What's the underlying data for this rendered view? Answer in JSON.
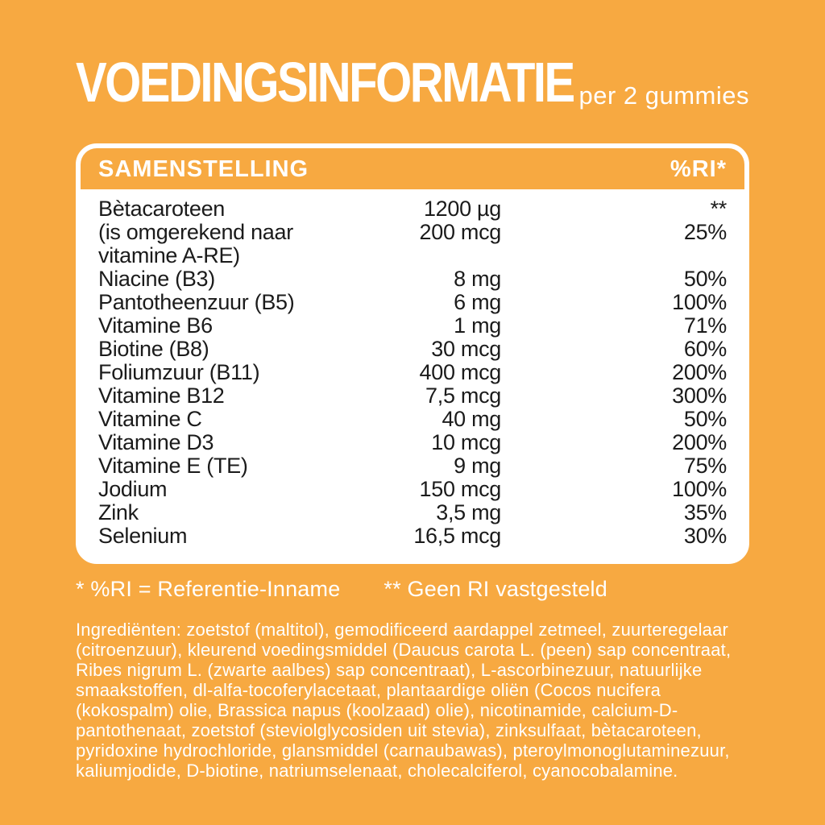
{
  "page": {
    "background_color": "#F7A941",
    "text_color_dark": "#1B1B1B",
    "text_color_light": "#FFFFFF"
  },
  "header": {
    "title": "VOEDINGSINFORMATIE",
    "serving": "per 2 gummies"
  },
  "table": {
    "name_column_header": "SAMENSTELLING",
    "ri_column_header": "%RI*",
    "rows": [
      {
        "name": "Bètacaroteen",
        "amount": "1200 µg",
        "ri": "**"
      },
      {
        "name": "(is omgerekend naar",
        "amount": "200 mcg",
        "ri": "25%"
      },
      {
        "name": "vitamine A-RE)",
        "amount": "",
        "ri": ""
      },
      {
        "name": "Niacine (B3)",
        "amount": "8 mg",
        "ri": "50%"
      },
      {
        "name": "Pantotheenzuur (B5)",
        "amount": "6 mg",
        "ri": "100%"
      },
      {
        "name": "Vitamine B6",
        "amount": "1 mg",
        "ri": "71%"
      },
      {
        "name": "Biotine (B8)",
        "amount": "30 mcg",
        "ri": "60%"
      },
      {
        "name": "Foliumzuur (B11)",
        "amount": "400 mcg",
        "ri": "200%"
      },
      {
        "name": "Vitamine B12",
        "amount": "7,5 mcg",
        "ri": "300%"
      },
      {
        "name": "Vitamine C",
        "amount": "40 mg",
        "ri": "50%"
      },
      {
        "name": "Vitamine D3",
        "amount": "10 mcg",
        "ri": "200%"
      },
      {
        "name": "Vitamine E (TE)",
        "amount": "9 mg",
        "ri": "75%"
      },
      {
        "name": "Jodium",
        "amount": "150 mcg",
        "ri": "100%"
      },
      {
        "name": "Zink",
        "amount": "3,5 mg",
        "ri": "35%"
      },
      {
        "name": "Selenium",
        "amount": "16,5 mcg",
        "ri": "30%"
      }
    ]
  },
  "footnotes": {
    "ri_note": "* %RI = Referentie-Inname",
    "no_ri_note": "** Geen RI vastgesteld"
  },
  "ingredients": {
    "text": "Ingrediënten: zoetstof (maltitol), gemodificeerd aardappel zetmeel, zuurteregelaar (citroenzuur), kleurend voedingsmiddel (Daucus carota L. (peen) sap concentraat, Ribes nigrum L. (zwarte aalbes) sap concentraat), L-ascorbinezuur, natuurlijke smaakstoffen, dl-alfa-tocoferylacetaat, plantaardige oliën (Cocos nucifera (kokospalm) olie, Brassica napus (koolzaad) olie), nicotinamide, calcium-D-pantothenaat, zoetstof (steviolglycosiden uit stevia), zinksulfaat, bètacaroteen, pyridoxine hydrochloride, glansmiddel (carnaubawas), pteroylmonoglutaminezuur, kaliumjodide, D-biotine, natriumselenaat, cholecalciferol, cyanocobalamine."
  }
}
